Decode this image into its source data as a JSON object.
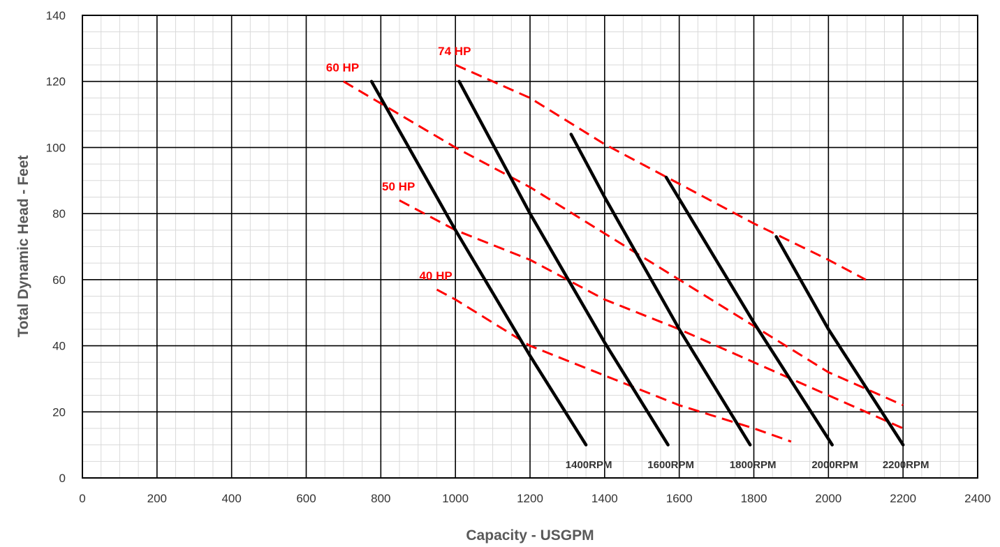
{
  "chart_data": {
    "type": "line",
    "title": "",
    "xlabel": "Capacity - USGPM",
    "ylabel": "Total Dynamic Head - Feet",
    "xlim": [
      0,
      2400
    ],
    "ylim": [
      0,
      140
    ],
    "xticks": [
      0,
      200,
      400,
      600,
      800,
      1000,
      1200,
      1400,
      1600,
      1800,
      2000,
      2200,
      2400
    ],
    "yticks": [
      0,
      20,
      40,
      60,
      80,
      100,
      120,
      140
    ],
    "x_minor_step": 50,
    "y_minor_step": 5,
    "grid": true,
    "legend": "none",
    "colors": {
      "rpm": "#000000",
      "hp": "#ff0000",
      "major_grid": "#000000",
      "minor_grid": "#d9d9d9"
    },
    "rpm_curves": [
      {
        "name": "1400RPM",
        "points": [
          [
            775,
            120
          ],
          [
            1000,
            75
          ],
          [
            1200,
            37
          ],
          [
            1350,
            10
          ]
        ]
      },
      {
        "name": "1600RPM",
        "points": [
          [
            1010,
            120
          ],
          [
            1200,
            80
          ],
          [
            1400,
            41
          ],
          [
            1570,
            10
          ]
        ]
      },
      {
        "name": "1800RPM",
        "points": [
          [
            1310,
            104
          ],
          [
            1400,
            85
          ],
          [
            1600,
            45
          ],
          [
            1790,
            10
          ]
        ]
      },
      {
        "name": "2000RPM",
        "points": [
          [
            1565,
            91
          ],
          [
            1800,
            47
          ],
          [
            2010,
            10
          ]
        ]
      },
      {
        "name": "2200RPM",
        "points": [
          [
            1860,
            73
          ],
          [
            2000,
            45
          ],
          [
            2200,
            10
          ]
        ]
      }
    ],
    "hp_curves": [
      {
        "name": "40 HP",
        "points": [
          [
            950,
            57
          ],
          [
            1000,
            54
          ],
          [
            1200,
            40
          ],
          [
            1400,
            31
          ],
          [
            1600,
            22
          ],
          [
            1800,
            15
          ],
          [
            1900,
            11
          ]
        ]
      },
      {
        "name": "50 HP",
        "points": [
          [
            850,
            84
          ],
          [
            1000,
            75
          ],
          [
            1200,
            66
          ],
          [
            1400,
            54
          ],
          [
            1600,
            45
          ],
          [
            1800,
            35
          ],
          [
            2000,
            25
          ],
          [
            2200,
            15
          ]
        ]
      },
      {
        "name": "60 HP",
        "points": [
          [
            700,
            120
          ],
          [
            1000,
            100
          ],
          [
            1200,
            88
          ],
          [
            1400,
            74
          ],
          [
            1600,
            60
          ],
          [
            1800,
            46
          ],
          [
            2000,
            32
          ],
          [
            2200,
            22
          ]
        ]
      },
      {
        "name": "74 HP",
        "points": [
          [
            1000,
            125
          ],
          [
            1200,
            115
          ],
          [
            1400,
            101
          ],
          [
            1600,
            89
          ],
          [
            1800,
            77
          ],
          [
            2000,
            66
          ],
          [
            2100,
            60
          ]
        ]
      }
    ]
  }
}
